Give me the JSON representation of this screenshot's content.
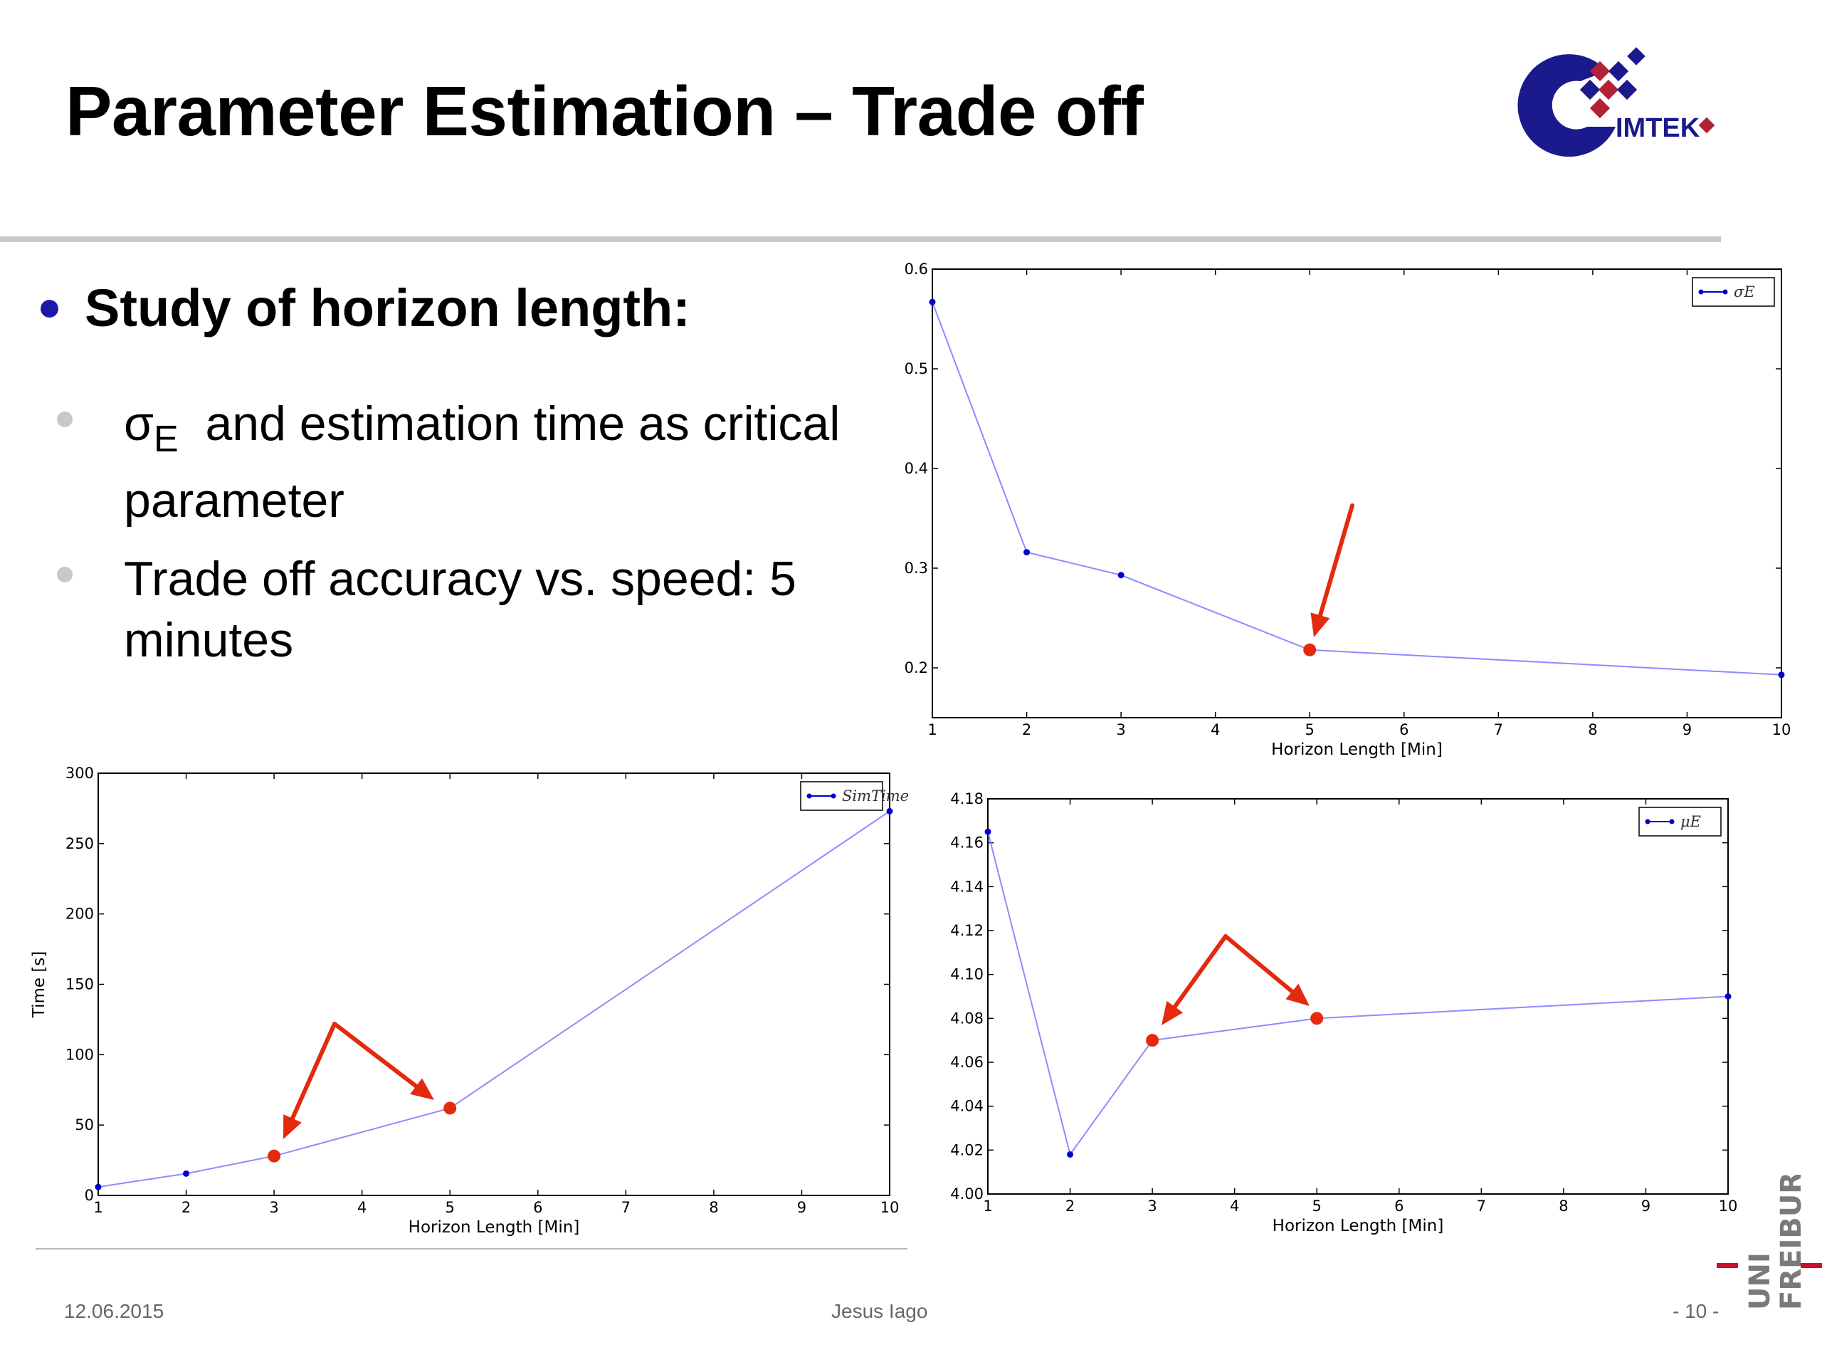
{
  "title": "Parameter Estimation – Trade off",
  "logo_text": "IMTEK",
  "heading": "Study of horizon length:",
  "bullets": [
    {
      "symbol": "σ",
      "subscript": "E",
      "text": "and estimation time as critical parameter"
    },
    {
      "text": "Trade off accuracy vs. speed: 5 minutes"
    }
  ],
  "footer": {
    "date": "12.06.2015",
    "author": "Jesus Iago",
    "page": "- 10 -"
  },
  "uni_logo": {
    "top": "UNI",
    "bottom": "FREIBURG"
  },
  "colors": {
    "series": "#0000cc",
    "line": "#8c8cff",
    "highlight": "#e32a0e",
    "arrow": "#e32a0e",
    "uni_red": "#c8102e",
    "imtek_blue": "#1a1a8c"
  },
  "chart_data": [
    {
      "id": "sigma",
      "type": "line",
      "xlabel": "Horizon Length [Min]",
      "ylabel": "",
      "xlim": [
        1,
        10
      ],
      "ylim": [
        0.15,
        0.6
      ],
      "xticks": [
        1,
        2,
        3,
        4,
        5,
        6,
        7,
        8,
        9,
        10
      ],
      "yticks": [
        0.2,
        0.3,
        0.4,
        0.5,
        0.6
      ],
      "x": [
        1,
        2,
        3,
        5,
        10
      ],
      "series": [
        {
          "name": "σE",
          "values": [
            0.567,
            0.316,
            0.293,
            0.218,
            0.193
          ]
        }
      ],
      "highlight_x": [
        5
      ],
      "legend": "top-right",
      "grid": false
    },
    {
      "id": "simtime",
      "type": "line",
      "xlabel": "Horizon Length [Min]",
      "ylabel": "Time [s]",
      "xlim": [
        1,
        10
      ],
      "ylim": [
        0,
        300
      ],
      "xticks": [
        1,
        2,
        3,
        4,
        5,
        6,
        7,
        8,
        9,
        10
      ],
      "yticks": [
        0,
        50,
        100,
        150,
        200,
        250,
        300
      ],
      "x": [
        1,
        2,
        3,
        5,
        10
      ],
      "series": [
        {
          "name": "SimTime",
          "values": [
            6,
            15.5,
            28,
            62,
            273
          ]
        }
      ],
      "highlight_x": [
        3,
        5
      ],
      "legend": "top-right",
      "grid": false
    },
    {
      "id": "mu",
      "type": "line",
      "xlabel": "Horizon Length [Min]",
      "ylabel": "",
      "xlim": [
        1,
        10
      ],
      "ylim": [
        4.0,
        4.18
      ],
      "xticks": [
        1,
        2,
        3,
        4,
        5,
        6,
        7,
        8,
        9,
        10
      ],
      "yticks": [
        4.0,
        4.02,
        4.04,
        4.06,
        4.08,
        4.1,
        4.12,
        4.14,
        4.16,
        4.18
      ],
      "x": [
        1,
        2,
        3,
        5,
        10
      ],
      "series": [
        {
          "name": "μE",
          "values": [
            4.165,
            4.018,
            4.07,
            4.08,
            4.09
          ]
        }
      ],
      "highlight_x": [
        3,
        5
      ],
      "legend": "top-right",
      "grid": false
    }
  ]
}
